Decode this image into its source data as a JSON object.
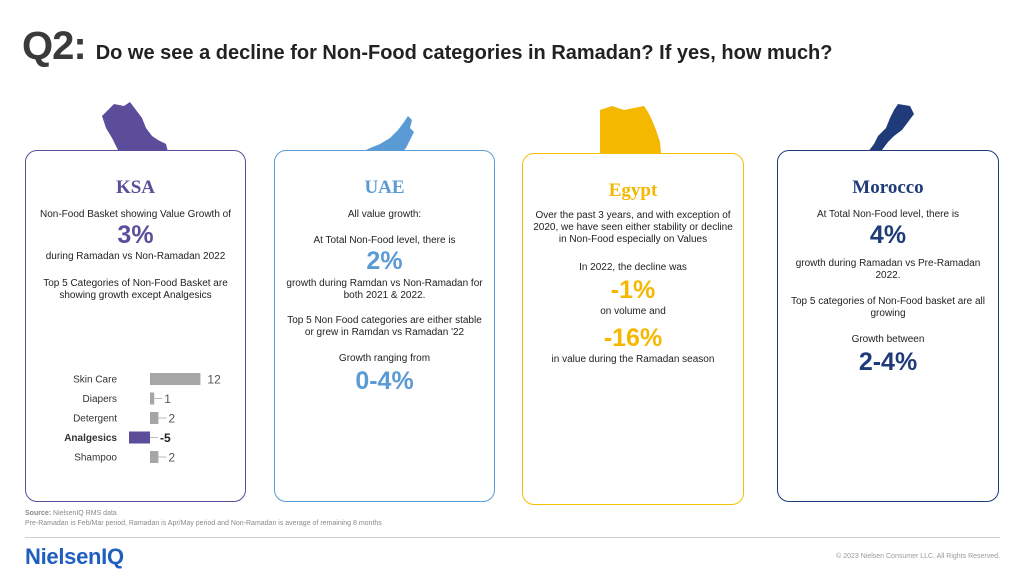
{
  "header": {
    "q_label": "Q2:",
    "title": "Do we see a decline for Non-Food categories in Ramadan? If yes, how much?"
  },
  "colors": {
    "ksa": "#5b4d9a",
    "uae": "#5b9bd5",
    "egypt": "#f5b800",
    "morocco": "#1f3b7a",
    "bar_gray": "#a6a6a6"
  },
  "cards": {
    "ksa": {
      "name": "KSA",
      "line1": "Non-Food Basket showing Value Growth of",
      "big": "3%",
      "line2": "during Ramadan vs Non-Ramadan 2022",
      "line3a": "Top 5 Categories of Non-Food Basket are",
      "line3b": "showing growth except Analgesics"
    },
    "uae": {
      "name": "UAE",
      "line1": "All value growth:",
      "line2": "At Total Non-Food level, there is",
      "big1": "2%",
      "line3a": "growth during Ramdan vs Non-Ramadan for",
      "line3b": "both 2021 & 2022.",
      "line4a": "Top 5 Non Food categories are either stable",
      "line4b": "or grew in Ramdan vs Ramadan '22",
      "line5": "Growth ranging from",
      "big2": "0-4%"
    },
    "egypt": {
      "name": "Egypt",
      "line1a": "Over the past 3 years, and with exception of",
      "line1b": "2020, we have seen either stability or decline",
      "line1c": "in Non-Food especially on Values",
      "line2": "In 2022, the decline was",
      "big1": "-1%",
      "line3": "on volume and",
      "big2": "-16%",
      "line4": "in value during the Ramadan season"
    },
    "morocco": {
      "name": "Morocco",
      "line1": "At Total Non-Food level, there is",
      "big1": "4%",
      "line2a": "growth during Ramadan vs Pre-Ramadan",
      "line2b": "2022.",
      "line3a": "Top 5 categories of Non-Food basket are all",
      "line3b": "growing",
      "line4": "Growth between",
      "big2": "2-4%"
    }
  },
  "chart_data": {
    "type": "bar",
    "orientation": "horizontal",
    "categories": [
      "Skin Care",
      "Diapers",
      "Detergent",
      "Analgesics",
      "Shampoo"
    ],
    "values": [
      12,
      1,
      2,
      -5,
      2
    ],
    "highlight": "Analgesics",
    "title": "",
    "xlabel": "",
    "ylabel": ""
  },
  "footer": {
    "source_label": "Source:",
    "source_text": " NielsenIQ RMS data",
    "note": "Pre-Ramadan is Feb/Mar period, Ramadan is Apr/May period and Non-Ramadan is average of remaining 8 months",
    "logo": "NielsenIQ",
    "copyright": "© 2023 Nielsen Consumer LLC. All Rights Reserved."
  }
}
